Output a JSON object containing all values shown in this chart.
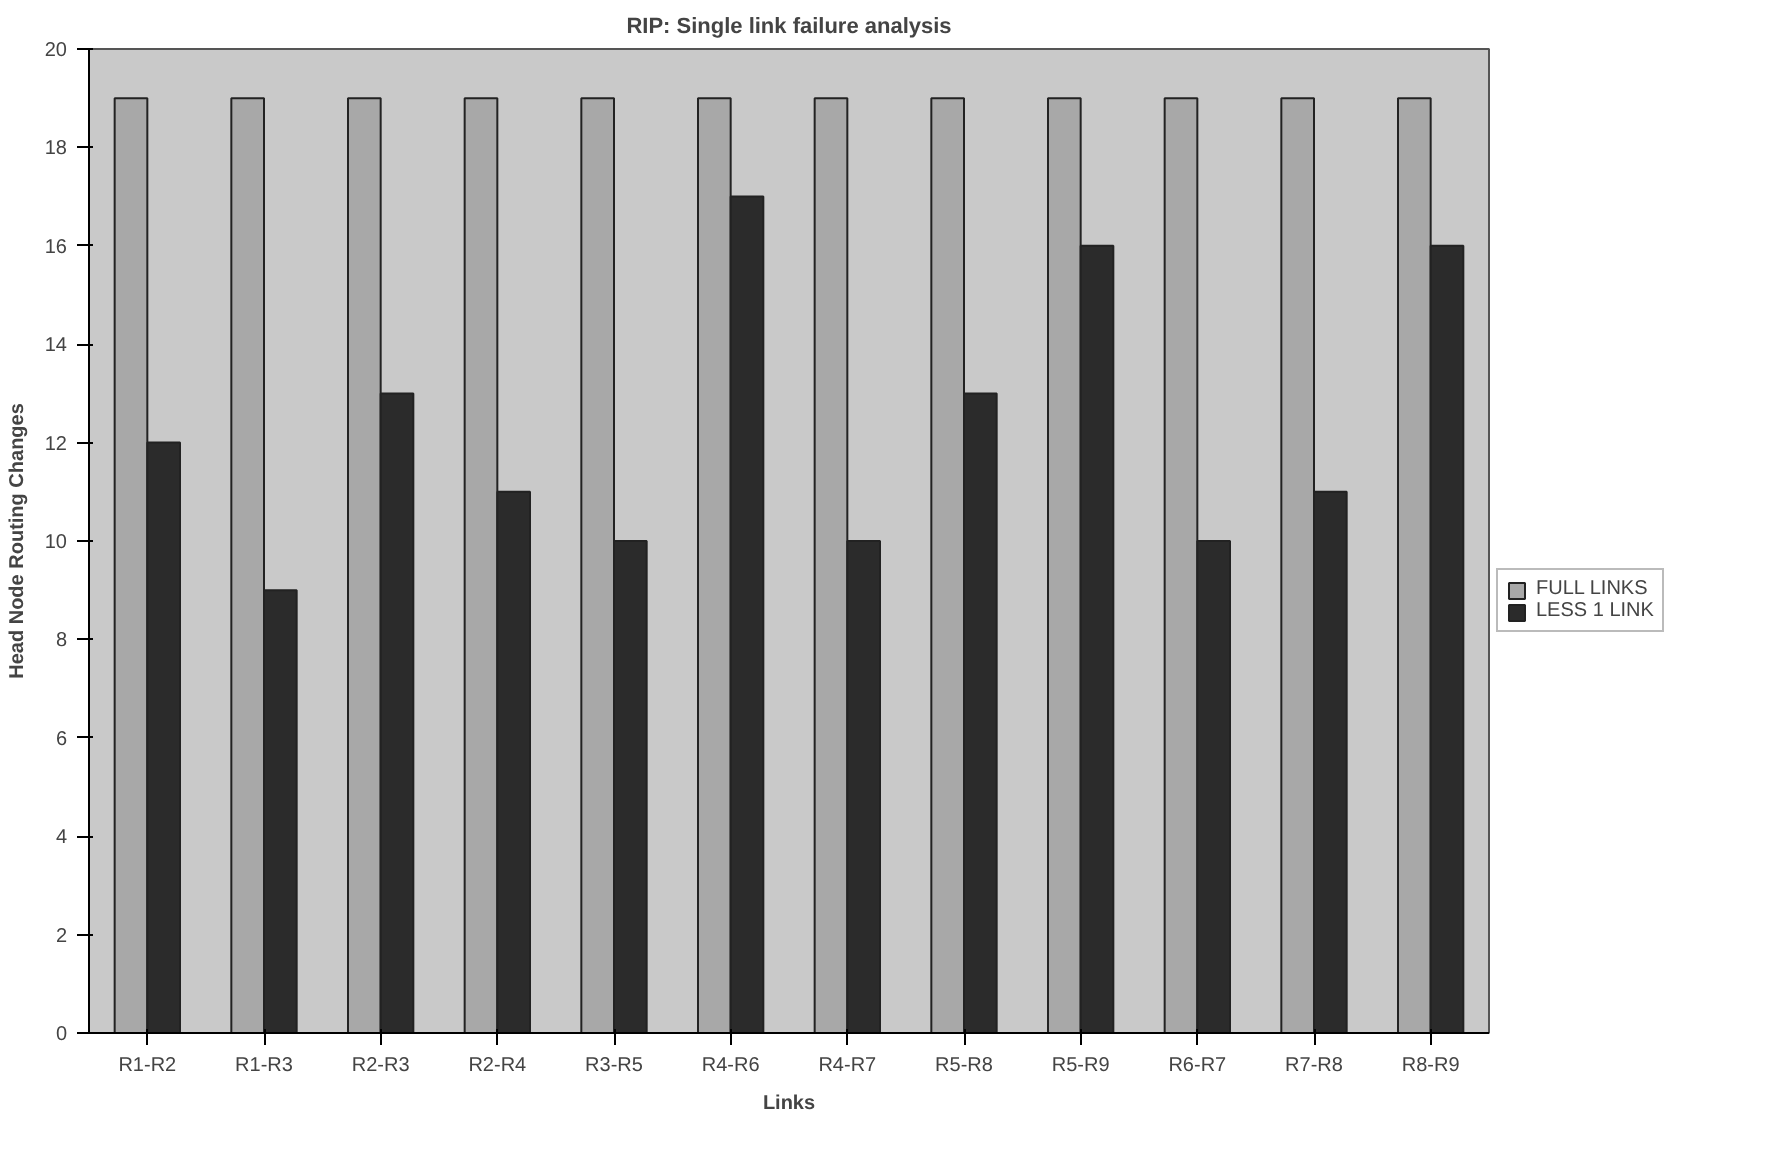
{
  "chart_data": {
    "type": "bar",
    "title": "RIP: Single link failure analysis",
    "xlabel": "Links",
    "ylabel": "Head Node Routing Changes",
    "categories": [
      "R1-R2",
      "R1-R3",
      "R2-R3",
      "R2-R4",
      "R3-R5",
      "R4-R6",
      "R4-R7",
      "R5-R8",
      "R5-R9",
      "R6-R7",
      "R7-R8",
      "R8-R9"
    ],
    "series": [
      {
        "name": "FULL LINKS",
        "color": "#a8a8a8",
        "values": [
          19,
          19,
          19,
          19,
          19,
          19,
          19,
          19,
          19,
          19,
          19,
          19
        ]
      },
      {
        "name": "LESS 1 LINK",
        "color": "#2b2b2b",
        "values": [
          12,
          9,
          13,
          11,
          10,
          17,
          10,
          13,
          16,
          10,
          11,
          16
        ]
      }
    ],
    "ylim": [
      0,
      20
    ],
    "yticks": [
      0,
      2,
      4,
      6,
      8,
      10,
      12,
      14,
      16,
      18,
      20
    ],
    "grid": false,
    "legend": "right"
  }
}
